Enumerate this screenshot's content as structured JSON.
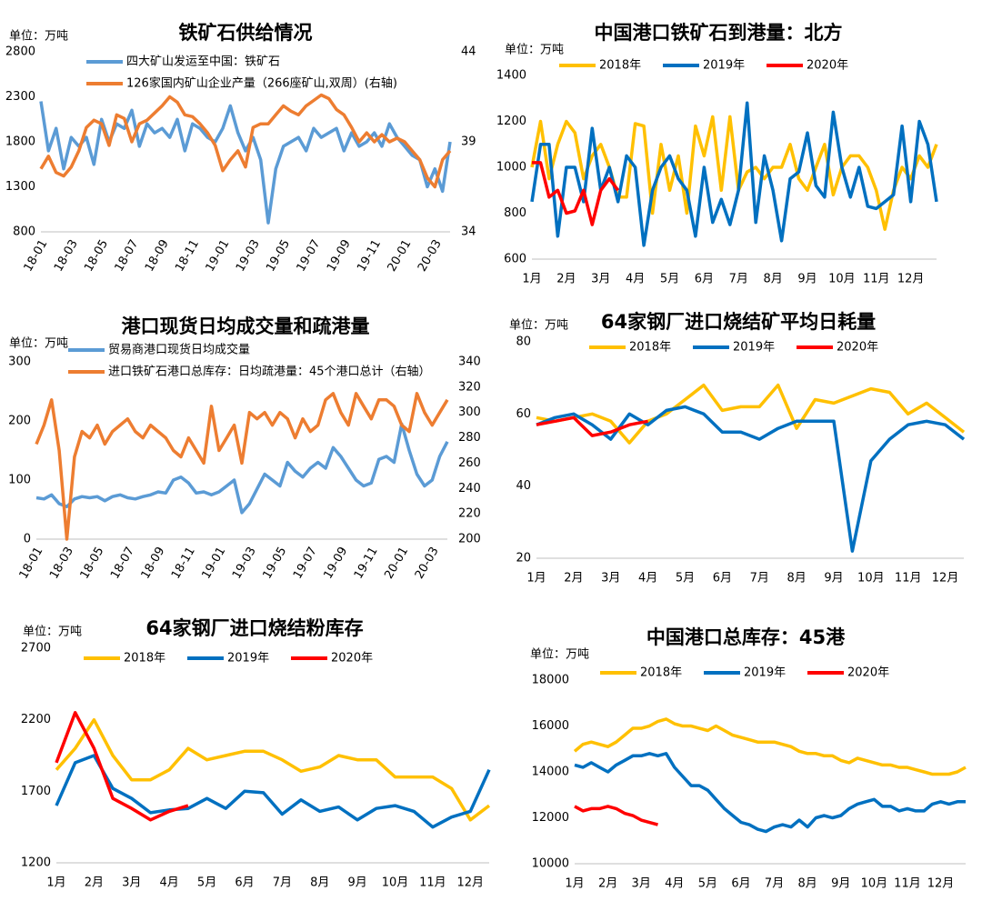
{
  "chart_data": [
    {
      "type": "line",
      "title": "铁矿石供给情况",
      "unit_label": "单位：万吨",
      "categories": [
        "18-01",
        null,
        null,
        null,
        "18-03",
        null,
        null,
        null,
        "18-05",
        null,
        null,
        null,
        "18-07",
        null,
        null,
        null,
        "18-09",
        null,
        null,
        null,
        "18-11",
        null,
        null,
        null,
        "19-01",
        null,
        null,
        null,
        "19-03",
        null,
        null,
        null,
        "19-05",
        null,
        null,
        null,
        "19-07",
        null,
        null,
        null,
        "19-09",
        null,
        null,
        null,
        "19-11",
        null,
        null,
        null,
        "20-01",
        null,
        null,
        null,
        "20-03",
        null,
        null
      ],
      "series": [
        {
          "name": "四大矿山发运至中国：铁矿石",
          "color": "#5B9BD5",
          "values": [
            2250,
            1700,
            1950,
            1500,
            1850,
            1750,
            1850,
            1550,
            2050,
            1800,
            2000,
            1950,
            2150,
            1750,
            2000,
            1900,
            1950,
            1850,
            2050,
            1700,
            2000,
            1950,
            1850,
            1800,
            1950,
            2200,
            1900,
            1700,
            1850,
            1600,
            900,
            1500,
            1750,
            1800,
            1850,
            1700,
            1950,
            1850,
            1900,
            1950,
            1700,
            1900,
            1750,
            1800,
            1900,
            1750,
            2000,
            1850,
            1750,
            1650,
            1600,
            1300,
            1500,
            1250,
            1800
          ]
        },
        {
          "name": "126家国内矿山企业产量（266座矿山,双周）(右轴)",
          "color": "#ED7D31",
          "axis": "y2",
          "values": [
            37.5,
            38.2,
            37.3,
            37.1,
            37.6,
            38.5,
            39.8,
            40.2,
            40.0,
            38.8,
            40.5,
            40.3,
            39.0,
            40.0,
            40.2,
            40.6,
            41.0,
            41.5,
            41.2,
            40.5,
            40.4,
            40.0,
            39.5,
            38.8,
            37.4,
            38.0,
            38.5,
            37.6,
            39.8,
            40.0,
            40.0,
            40.5,
            41.0,
            40.7,
            40.5,
            41.0,
            41.3,
            41.6,
            41.4,
            40.8,
            40.5,
            39.8,
            39.0,
            39.5,
            39.0,
            39.4,
            39.0,
            39.2,
            39.0,
            38.5,
            38.0,
            37.0,
            36.5,
            38.0,
            38.5
          ]
        }
      ],
      "ylim": [
        800,
        2800
      ],
      "yticks": [
        800,
        1300,
        1800,
        2300,
        2800
      ],
      "y2lim": [
        34,
        44
      ],
      "y2ticks": [
        34,
        39,
        44
      ],
      "legend": "top-left"
    },
    {
      "type": "line",
      "title": "中国港口铁矿石到港量：北方",
      "unit_label": "单位：万吨",
      "categories": [
        "1月",
        null,
        null,
        null,
        "2月",
        null,
        null,
        null,
        "3月",
        null,
        null,
        null,
        "4月",
        null,
        null,
        null,
        "5月",
        null,
        null,
        null,
        "6月",
        null,
        null,
        null,
        "7月",
        null,
        null,
        null,
        "8月",
        null,
        null,
        null,
        "9月",
        null,
        null,
        null,
        "10月",
        null,
        null,
        null,
        "11月",
        null,
        null,
        null,
        "12月",
        null,
        null,
        null
      ],
      "series": [
        {
          "name": "2018年",
          "color": "#FFC000",
          "values": [
            1000,
            1200,
            950,
            1100,
            1200,
            1150,
            950,
            1050,
            1100,
            1000,
            870,
            870,
            1190,
            1180,
            800,
            1100,
            900,
            1050,
            800,
            1180,
            1050,
            1220,
            900,
            1220,
            900,
            980,
            1000,
            950,
            1000,
            1000,
            1100,
            950,
            900,
            1000,
            1100,
            880,
            1000,
            1050,
            1050,
            1000,
            900,
            730,
            900,
            1000,
            950,
            1050,
            1000,
            1100
          ]
        },
        {
          "name": "2019年",
          "color": "#0070C0",
          "values": [
            850,
            1100,
            1100,
            700,
            1000,
            1000,
            850,
            1170,
            900,
            1000,
            850,
            1050,
            1000,
            660,
            900,
            1000,
            1050,
            950,
            900,
            700,
            1000,
            760,
            860,
            750,
            900,
            1280,
            760,
            1050,
            900,
            680,
            950,
            980,
            1150,
            920,
            870,
            1240,
            1000,
            870,
            1000,
            830,
            820,
            850,
            880,
            1180,
            850,
            1200,
            1100,
            850
          ]
        },
        {
          "name": "2020年",
          "color": "#FF0000",
          "values": [
            1020,
            1020,
            870,
            900,
            800,
            810,
            900,
            750,
            900,
            950,
            900,
            null,
            null,
            null,
            null,
            null,
            null,
            null,
            null,
            null,
            null,
            null,
            null,
            null,
            null,
            null,
            null,
            null,
            null,
            null,
            null,
            null,
            null,
            null,
            null,
            null,
            null,
            null,
            null,
            null,
            null,
            null,
            null,
            null,
            null,
            null,
            null,
            null
          ]
        }
      ],
      "ylim": [
        600,
        1400
      ],
      "yticks": [
        600,
        800,
        1000,
        1200,
        1400
      ],
      "legend": "top"
    },
    {
      "type": "line",
      "title": "港口现货日均成交量和疏港量",
      "unit_label": "单位：万吨",
      "categories": [
        "18-01",
        null,
        null,
        null,
        "18-03",
        null,
        null,
        null,
        "18-05",
        null,
        null,
        null,
        "18-07",
        null,
        null,
        null,
        "18-09",
        null,
        null,
        null,
        "18-11",
        null,
        null,
        null,
        "19-01",
        null,
        null,
        null,
        "19-03",
        null,
        null,
        null,
        "19-05",
        null,
        null,
        null,
        "19-07",
        null,
        null,
        null,
        "19-09",
        null,
        null,
        null,
        "19-11",
        null,
        null,
        null,
        "20-01",
        null,
        null,
        null,
        "20-03",
        null,
        null
      ],
      "series": [
        {
          "name": "贸易商港口现货日均成交量",
          "color": "#5B9BD5",
          "values": [
            70,
            68,
            75,
            60,
            55,
            68,
            72,
            70,
            72,
            65,
            72,
            75,
            70,
            68,
            72,
            75,
            80,
            78,
            100,
            105,
            95,
            78,
            80,
            75,
            80,
            90,
            100,
            45,
            60,
            85,
            110,
            100,
            90,
            130,
            115,
            105,
            120,
            130,
            120,
            155,
            140,
            120,
            100,
            90,
            95,
            135,
            140,
            130,
            195,
            150,
            110,
            90,
            100,
            140,
            165
          ]
        },
        {
          "name": "进口铁矿石港口总库存：日均疏港量：45个港口总计（右轴）",
          "color": "#ED7D31",
          "axis": "y2",
          "values": [
            275,
            290,
            310,
            270,
            200,
            265,
            285,
            280,
            290,
            275,
            285,
            290,
            295,
            285,
            280,
            290,
            285,
            280,
            270,
            265,
            280,
            270,
            260,
            305,
            270,
            280,
            290,
            260,
            300,
            295,
            300,
            290,
            300,
            295,
            280,
            295,
            285,
            290,
            310,
            315,
            300,
            290,
            315,
            305,
            295,
            310,
            310,
            305,
            290,
            285,
            315,
            300,
            290,
            300,
            310
          ]
        }
      ],
      "ylim": [
        0,
        300
      ],
      "yticks": [
        0,
        100,
        200,
        300
      ],
      "y2lim": [
        200,
        340
      ],
      "y2ticks": [
        200,
        220,
        240,
        260,
        280,
        300,
        320,
        340
      ],
      "legend": "top-left"
    },
    {
      "type": "line",
      "title": "64家钢厂进口烧结矿平均日耗量",
      "unit_label": "单位：万吨",
      "categories": [
        "1月",
        null,
        "2月",
        null,
        "3月",
        null,
        "4月",
        null,
        "5月",
        null,
        "6月",
        null,
        "7月",
        null,
        "8月",
        null,
        "9月",
        null,
        "10月",
        null,
        "11月",
        null,
        "12月",
        null
      ],
      "series": [
        {
          "name": "2018年",
          "color": "#FFC000",
          "values": [
            59,
            58,
            59,
            60,
            58,
            52,
            58,
            60,
            64,
            68,
            61,
            62,
            62,
            68,
            56,
            64,
            63,
            65,
            67,
            66,
            60,
            63,
            59,
            55
          ]
        },
        {
          "name": "2019年",
          "color": "#0070C0",
          "values": [
            57,
            59,
            60,
            57,
            53,
            60,
            57,
            61,
            62,
            60,
            55,
            55,
            53,
            56,
            58,
            58,
            58,
            22,
            47,
            53,
            57,
            58,
            57,
            53
          ]
        },
        {
          "name": "2020年",
          "color": "#FF0000",
          "values": [
            57,
            58,
            59,
            54,
            55,
            57,
            58,
            null,
            null,
            null,
            null,
            null,
            null,
            null,
            null,
            null,
            null,
            null,
            null,
            null,
            null,
            null,
            null,
            null
          ]
        }
      ],
      "ylim": [
        20,
        80
      ],
      "yticks": [
        20,
        40,
        60,
        80
      ],
      "legend": "top"
    },
    {
      "type": "line",
      "title": "64家钢厂进口烧结粉库存",
      "unit_label": "单位：万吨",
      "categories": [
        "1月",
        null,
        "2月",
        null,
        "3月",
        null,
        "4月",
        null,
        "5月",
        null,
        "6月",
        null,
        "7月",
        null,
        "8月",
        null,
        "9月",
        null,
        "10月",
        null,
        "11月",
        null,
        "12月",
        null
      ],
      "series": [
        {
          "name": "2018年",
          "color": "#FFC000",
          "values": [
            1850,
            2000,
            2200,
            1950,
            1780,
            1780,
            1850,
            2000,
            1920,
            1950,
            1980,
            1980,
            1920,
            1840,
            1870,
            1950,
            1920,
            1920,
            1800,
            1800,
            1800,
            1720,
            1500,
            1600
          ]
        },
        {
          "name": "2019年",
          "color": "#0070C0",
          "values": [
            1600,
            1900,
            1950,
            1720,
            1650,
            1550,
            1570,
            1580,
            1650,
            1580,
            1700,
            1690,
            1540,
            1640,
            1560,
            1590,
            1500,
            1580,
            1600,
            1560,
            1450,
            1520,
            1560,
            1850
          ]
        },
        {
          "name": "2020年",
          "color": "#FF0000",
          "values": [
            1900,
            2250,
            2000,
            1650,
            1580,
            1500,
            1560,
            1600,
            null,
            null,
            null,
            null,
            null,
            null,
            null,
            null,
            null,
            null,
            null,
            null,
            null,
            null,
            null,
            null
          ]
        }
      ],
      "ylim": [
        1200,
        2700
      ],
      "yticks": [
        1200,
        1700,
        2200,
        2700
      ],
      "legend": "top"
    },
    {
      "type": "line",
      "title": "中国港口总库存：45港",
      "unit_label": "单位：万吨",
      "categories": [
        "1月",
        null,
        null,
        null,
        "2月",
        null,
        null,
        null,
        "3月",
        null,
        null,
        null,
        "4月",
        null,
        null,
        null,
        "5月",
        null,
        null,
        null,
        "6月",
        null,
        null,
        null,
        "7月",
        null,
        null,
        null,
        "8月",
        null,
        null,
        null,
        "9月",
        null,
        null,
        null,
        "10月",
        null,
        null,
        null,
        "11月",
        null,
        null,
        null,
        "12月",
        null,
        null,
        null
      ],
      "series": [
        {
          "name": "2018年",
          "color": "#FFC000",
          "values": [
            14900,
            15200,
            15300,
            15200,
            15100,
            15300,
            15600,
            15900,
            15900,
            16000,
            16200,
            16300,
            16100,
            16000,
            16000,
            15900,
            15800,
            16000,
            15800,
            15600,
            15500,
            15400,
            15300,
            15300,
            15300,
            15200,
            15100,
            14900,
            14800,
            14800,
            14700,
            14700,
            14500,
            14400,
            14600,
            14500,
            14400,
            14300,
            14300,
            14200,
            14200,
            14100,
            14000,
            13900,
            13900,
            13900,
            14000,
            14200
          ]
        },
        {
          "name": "2019年",
          "color": "#0070C0",
          "values": [
            14300,
            14200,
            14400,
            14200,
            14000,
            14300,
            14500,
            14700,
            14700,
            14800,
            14700,
            14800,
            14200,
            13800,
            13400,
            13400,
            13200,
            12800,
            12400,
            12100,
            11800,
            11700,
            11500,
            11400,
            11600,
            11700,
            11600,
            11900,
            11600,
            12000,
            12100,
            12000,
            12100,
            12400,
            12600,
            12700,
            12800,
            12500,
            12500,
            12300,
            12400,
            12300,
            12300,
            12600,
            12700,
            12600,
            12700,
            12700
          ]
        },
        {
          "name": "2020年",
          "color": "#FF0000",
          "values": [
            12500,
            12300,
            12400,
            12400,
            12500,
            12400,
            12200,
            12100,
            11900,
            11800,
            11700,
            null,
            null,
            null,
            null,
            null,
            null,
            null,
            null,
            null,
            null,
            null,
            null,
            null,
            null,
            null,
            null,
            null,
            null,
            null,
            null,
            null,
            null,
            null,
            null,
            null,
            null,
            null,
            null,
            null,
            null,
            null,
            null,
            null,
            null,
            null,
            null,
            null
          ]
        }
      ],
      "ylim": [
        10000,
        18000
      ],
      "yticks": [
        10000,
        12000,
        14000,
        16000,
        18000
      ],
      "legend": "top"
    }
  ]
}
